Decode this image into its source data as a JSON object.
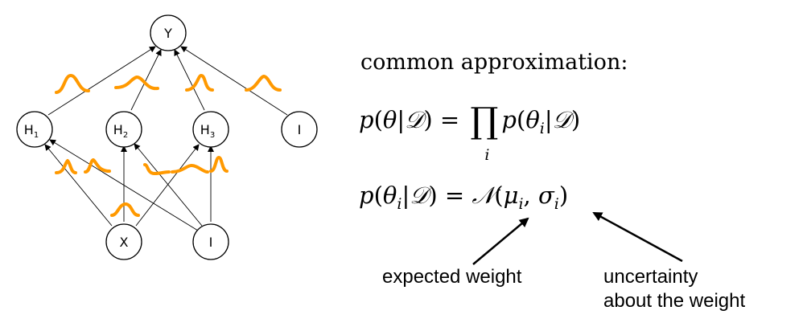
{
  "nodes": {
    "y": {
      "base": "Y",
      "sub": ""
    },
    "h1": {
      "base": "H",
      "sub": "1"
    },
    "h2": {
      "base": "H",
      "sub": "2"
    },
    "h3": {
      "base": "H",
      "sub": "3"
    },
    "bias_top": {
      "base": "I",
      "sub": ""
    },
    "x": {
      "base": "X",
      "sub": ""
    },
    "bias_bottom": {
      "base": "I",
      "sub": ""
    }
  },
  "heading": "common approximation:",
  "eq1": {
    "lhs_p": "p",
    "lhs_open": "(",
    "lhs_theta": "θ",
    "lhs_bar": "|",
    "lhs_D": "𝒟",
    "lhs_close": ")",
    "eq": " = ",
    "prod": "∏",
    "idx": "i",
    "rhs_p": "p",
    "rhs_open": "(",
    "rhs_theta": "θ",
    "rhs_i": "i",
    "rhs_bar": "|",
    "rhs_D": "𝒟",
    "rhs_close": ")"
  },
  "eq2": {
    "p": "p",
    "open": "(",
    "theta": "θ",
    "i": "i",
    "bar": "|",
    "D": "𝒟",
    "close": ")",
    "eq": " = ",
    "N": "𝒩",
    "nopen": "(",
    "mu": "μ",
    "mu_i": "i",
    "comma": ", ",
    "sigma": "σ",
    "sigma_i": "i",
    "nclose": ")"
  },
  "annotations": {
    "expected": "expected weight",
    "uncertainty_line1": "uncertainty",
    "uncertainty_line2": "about the weight"
  },
  "colors": {
    "bump": "#ff9900",
    "ink": "#000000"
  }
}
